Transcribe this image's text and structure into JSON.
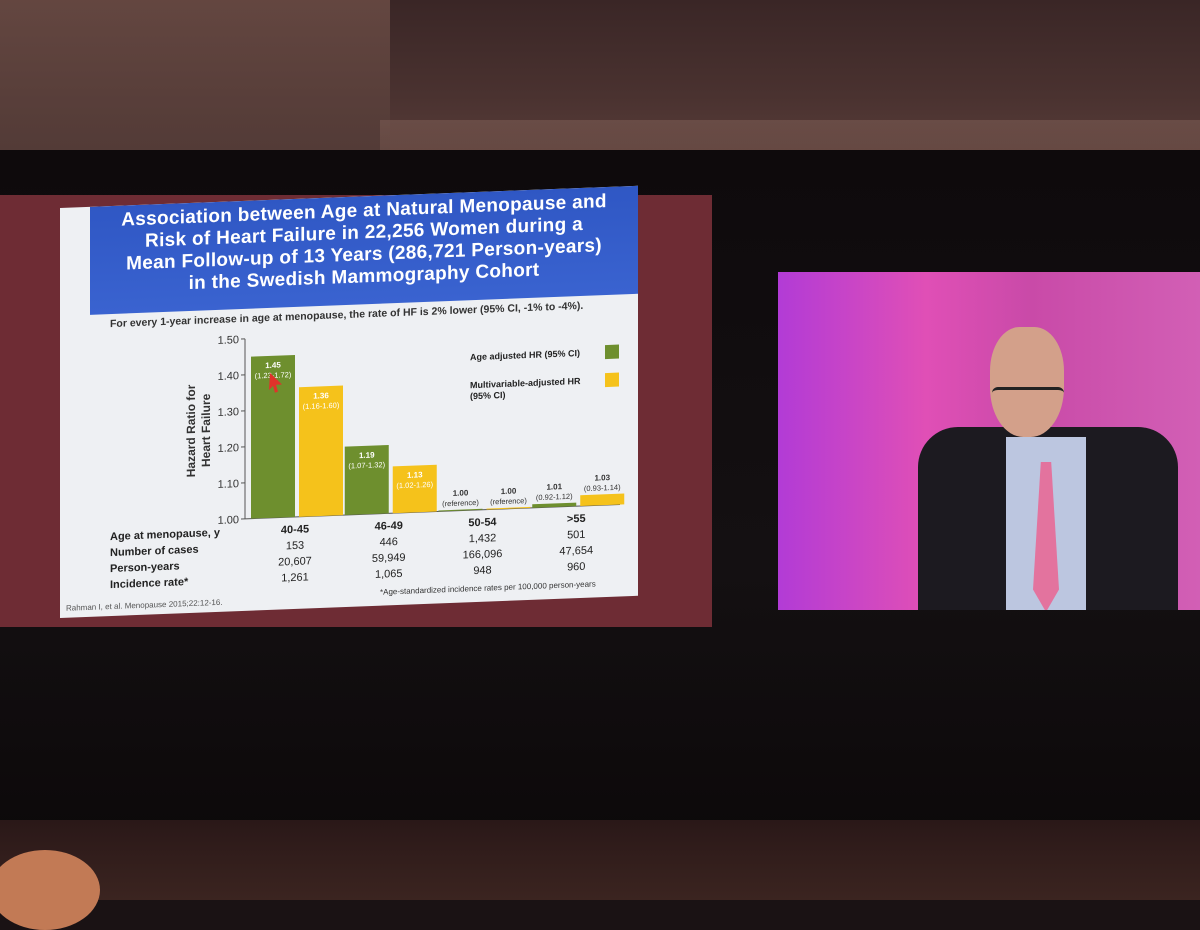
{
  "slide": {
    "title_lines": [
      "Association between Age at Natural Menopause and",
      "Risk of Heart Failure in 22,256 Women during a",
      "Mean Follow-up of 13 Years (286,721 Person-years)",
      "in the Swedish Mammography Cohort"
    ],
    "subtitle": "For every 1-year increase in age at menopause, the rate of HF is 2% lower (95% CI, -1% to -4%).",
    "citation": "Rahman I, et al. Menopause 2015;22:12-16.",
    "footnote": "*Age-standardized incidence rates per 100,000 person-years",
    "table": {
      "row_labels": [
        "Age at menopause, y",
        "Number of cases",
        "Person-years",
        "Incidence rate*"
      ],
      "columns": [
        [
          "40-45",
          "153",
          "20,607",
          "1,261"
        ],
        [
          "46-49",
          "446",
          "59,949",
          "1,065"
        ],
        [
          "50-54",
          "1,432",
          "166,096",
          "948"
        ],
        [
          ">55",
          "501",
          "47,654",
          "960"
        ]
      ]
    }
  },
  "chart_data": {
    "type": "bar",
    "categories": [
      "40-45",
      "46-49",
      "50-54",
      ">55"
    ],
    "ylabel": "Hazard Ratio for Heart Failure",
    "ylim": [
      1.0,
      1.5
    ],
    "yticks": [
      "1.00",
      "1.10",
      "1.20",
      "1.30",
      "1.40",
      "1.50"
    ],
    "series": [
      {
        "name": "Age adjusted HR (95% CI)",
        "color": "#6e8f2e",
        "values": [
          1.45,
          1.19,
          1.0,
          1.01
        ],
        "labels": [
          "1.45",
          "1.19",
          "1.00",
          "1.01"
        ],
        "ci_labels": [
          "(1.23-1.72)",
          "(1.07-1.32)",
          "(reference)",
          "(0.92-1.12)"
        ]
      },
      {
        "name": "Multivariable-adjusted HR (95% CI)",
        "color": "#f5c21b",
        "values": [
          1.36,
          1.13,
          1.0,
          1.03
        ],
        "labels": [
          "1.36",
          "1.13",
          "1.00",
          "1.03"
        ],
        "ci_labels": [
          "(1.16-1.60)",
          "(1.02-1.26)",
          "(reference)",
          "(0.93-1.14)"
        ]
      }
    ],
    "legend_placement": "top-right",
    "grid": false
  }
}
